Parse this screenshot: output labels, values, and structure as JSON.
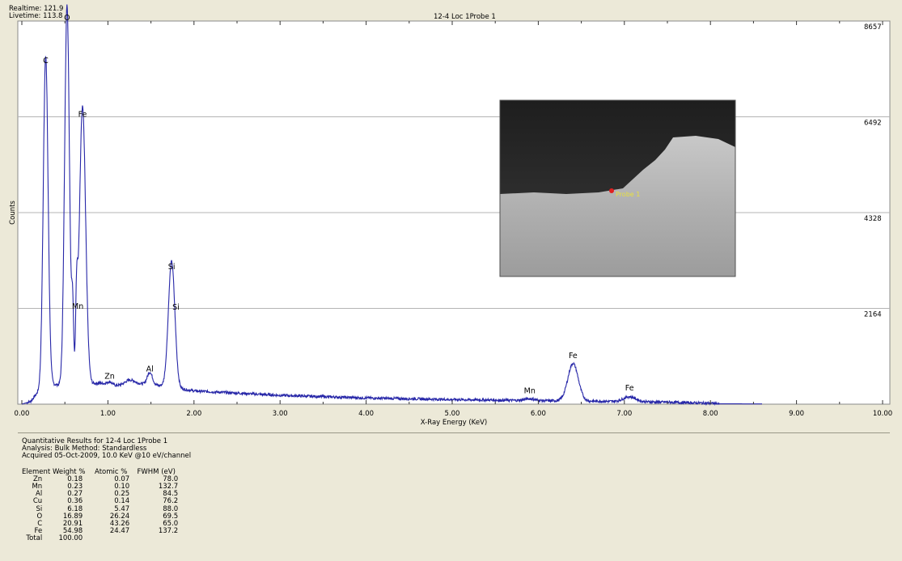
{
  "header": {
    "realtime": "Realtime: 121.9",
    "livetime": "Livetime: 113.8",
    "title": "12-4 Loc 1Probe 1"
  },
  "chart_data": {
    "type": "line",
    "title": "12-4 Loc 1Probe 1",
    "xlabel": "X-Ray Energy (KeV)",
    "ylabel": "Counts",
    "xlim": [
      0,
      10
    ],
    "ylim": [
      0,
      8657
    ],
    "x_ticks": [
      "0.00",
      "1.00",
      "2.00",
      "3.00",
      "4.00",
      "5.00",
      "6.00",
      "7.00",
      "8.00",
      "9.00",
      "10.00"
    ],
    "y_ticks": [
      "8657",
      "6492",
      "4328",
      "2164"
    ],
    "grid": "horizontal",
    "line_color": "#2727a8",
    "baseline": [
      [
        0.0,
        0
      ],
      [
        0.1,
        60
      ],
      [
        0.2,
        300
      ],
      [
        0.35,
        450
      ],
      [
        0.6,
        400
      ],
      [
        0.9,
        480
      ],
      [
        1.1,
        420
      ],
      [
        1.3,
        480
      ],
      [
        1.6,
        420
      ],
      [
        1.9,
        330
      ],
      [
        2.0,
        300
      ],
      [
        2.5,
        250
      ],
      [
        3.0,
        200
      ],
      [
        3.5,
        170
      ],
      [
        4.0,
        140
      ],
      [
        5.0,
        105
      ],
      [
        6.0,
        80
      ],
      [
        6.5,
        70
      ],
      [
        7.0,
        60
      ],
      [
        7.5,
        45
      ],
      [
        8.0,
        20
      ],
      [
        8.1,
        8
      ],
      [
        8.6,
        5
      ],
      [
        10.0,
        0
      ]
    ],
    "peaks": [
      {
        "e": 0.277,
        "h": 7500,
        "w": 0.028
      },
      {
        "e": 0.525,
        "h": 8600,
        "w": 0.028
      },
      {
        "e": 0.59,
        "h": 1650,
        "w": 0.012
      },
      {
        "e": 0.637,
        "h": 1650,
        "w": 0.012
      },
      {
        "e": 0.705,
        "h": 6300,
        "w": 0.036
      },
      {
        "e": 1.02,
        "h": 60,
        "w": 0.03
      },
      {
        "e": 1.25,
        "h": 80,
        "w": 0.05
      },
      {
        "e": 1.487,
        "h": 280,
        "w": 0.03
      },
      {
        "e": 1.74,
        "h": 2850,
        "w": 0.038
      },
      {
        "e": 5.9,
        "h": 40,
        "w": 0.06
      },
      {
        "e": 6.404,
        "h": 850,
        "w": 0.06
      },
      {
        "e": 7.06,
        "h": 110,
        "w": 0.07
      }
    ],
    "annotations": [
      {
        "label": "C",
        "x": 0.277,
        "y": 7630
      },
      {
        "label": "O",
        "x": 0.525,
        "y": 8600
      },
      {
        "label": "Fe",
        "x": 0.705,
        "y": 6420
      },
      {
        "label": "Mn",
        "x": 0.65,
        "y": 2080
      },
      {
        "label": "Si",
        "x": 1.74,
        "y": 2980
      },
      {
        "label": "Si",
        "x": 1.79,
        "y": 2060
      },
      {
        "label": "Al",
        "x": 1.487,
        "y": 670
      },
      {
        "label": "Zn",
        "x": 1.02,
        "y": 500
      },
      {
        "label": "Mn",
        "x": 5.9,
        "y": 170
      },
      {
        "label": "Fe",
        "x": 6.404,
        "y": 970
      },
      {
        "label": "Fe",
        "x": 7.06,
        "y": 240
      }
    ],
    "inset": {
      "label": "Probe 1"
    }
  },
  "results": {
    "title": "Quantitative Results for 12-4 Loc 1Probe 1",
    "analysis": "Analysis: Bulk    Method: Standardless",
    "acquired": "Acquired 05-Oct-2009, 10.0 KeV @10 eV/channel",
    "columns": [
      "Element",
      "Weight %",
      "Atomic %",
      "FWHM (eV)"
    ],
    "rows": [
      [
        "Zn",
        "0.18",
        "0.07",
        "78.0"
      ],
      [
        "Mn",
        "0.23",
        "0.10",
        "132.7"
      ],
      [
        "Al",
        "0.27",
        "0.25",
        "84.5"
      ],
      [
        "Cu",
        "0.36",
        "0.14",
        "76.2"
      ],
      [
        "Si",
        "6.18",
        "5.47",
        "88.0"
      ],
      [
        "O",
        "16.89",
        "26.24",
        "69.5"
      ],
      [
        "C",
        "20.91",
        "43.26",
        "65.0"
      ],
      [
        "Fe",
        "54.98",
        "24.47",
        "137.2"
      ]
    ],
    "total": [
      "Total",
      "100.00",
      "",
      ""
    ]
  }
}
